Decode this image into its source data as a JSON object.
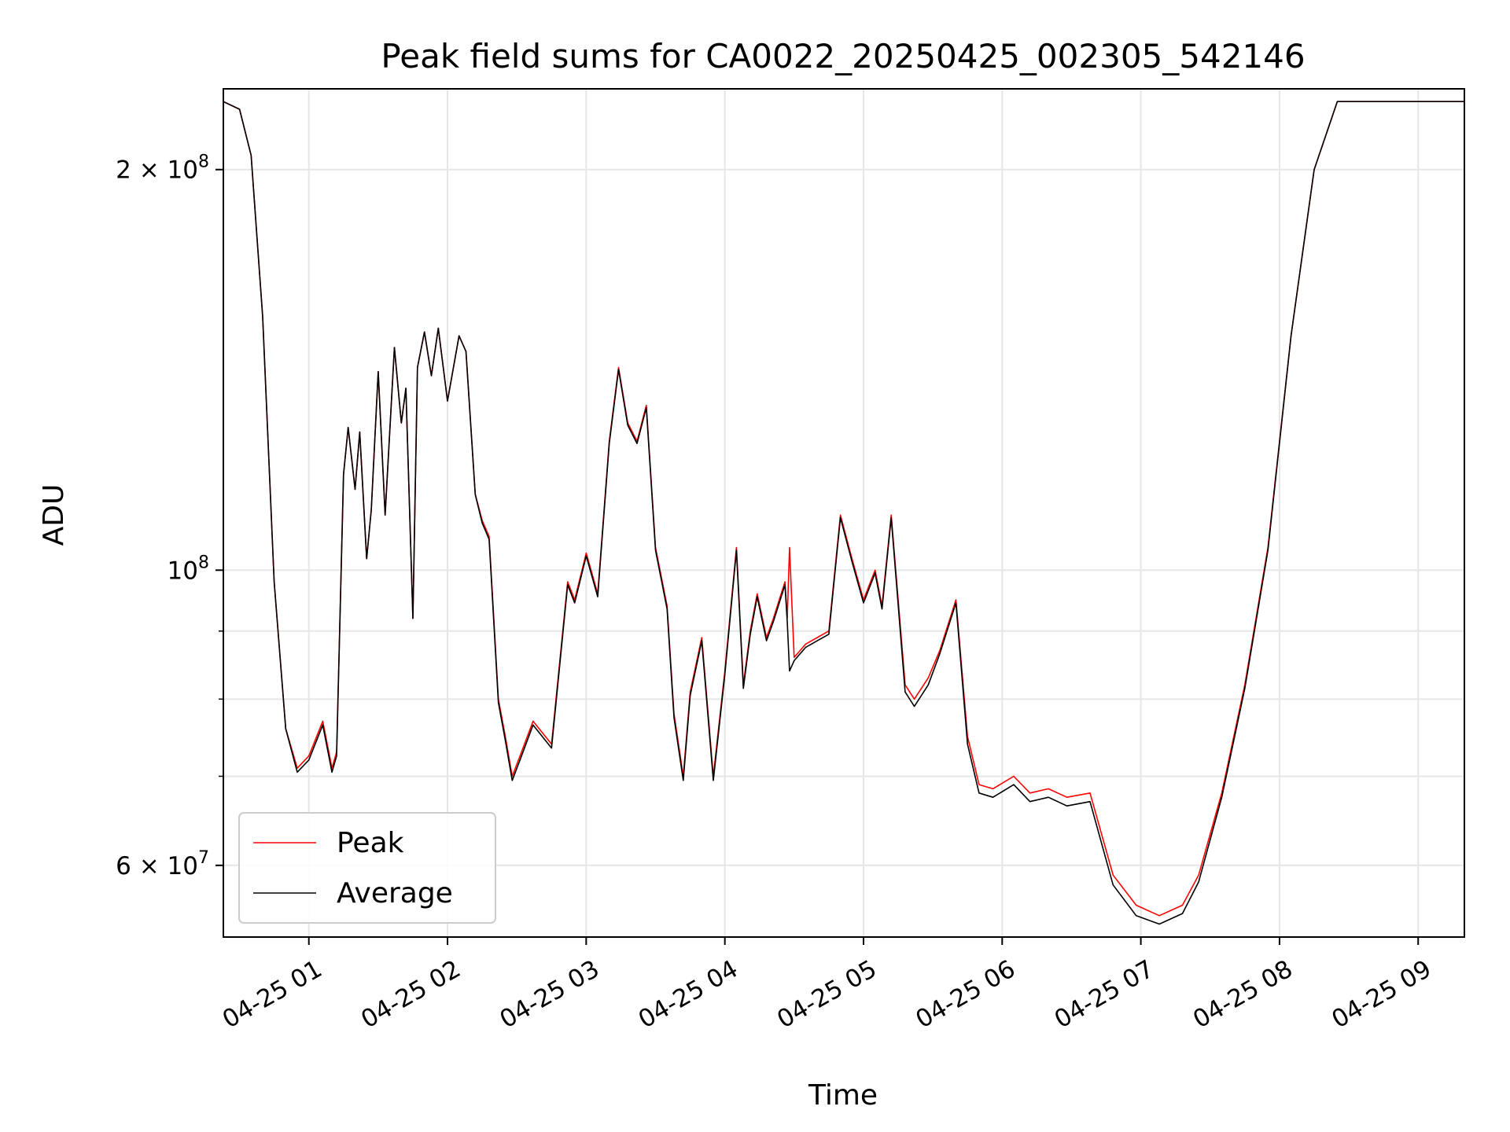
{
  "chart_data": {
    "type": "line",
    "title": "Peak field sums for CA0022_20250425_002305_542146",
    "xlabel": "Time",
    "ylabel": "ADU",
    "y_scale": "log",
    "xlim": [
      "2025-04-25 00:23:00",
      "2025-04-25 09:20:00"
    ],
    "ylim": [
      53000000,
      230000000
    ],
    "grid": true,
    "legend_position": "lower-left",
    "x_ticks": [
      {
        "t": "2025-04-25 01:00",
        "label": "04-25 01"
      },
      {
        "t": "2025-04-25 02:00",
        "label": "04-25 02"
      },
      {
        "t": "2025-04-25 03:00",
        "label": "04-25 03"
      },
      {
        "t": "2025-04-25 04:00",
        "label": "04-25 04"
      },
      {
        "t": "2025-04-25 05:00",
        "label": "04-25 05"
      },
      {
        "t": "2025-04-25 06:00",
        "label": "04-25 06"
      },
      {
        "t": "2025-04-25 07:00",
        "label": "04-25 07"
      },
      {
        "t": "2025-04-25 08:00",
        "label": "04-25 08"
      },
      {
        "t": "2025-04-25 09:00",
        "label": "04-25 09"
      }
    ],
    "y_major_ticks": [
      {
        "value": 60000000,
        "mantissa": "6",
        "exponent": "7"
      },
      {
        "value": 100000000,
        "mantissa": "",
        "exponent": "8"
      },
      {
        "value": 200000000,
        "mantissa": "2",
        "exponent": "8"
      }
    ],
    "y_minor_ticks": [
      70000000,
      80000000,
      90000000
    ],
    "series": [
      {
        "name": "Peak",
        "color": "#ff0000",
        "x": [
          "2025-04-25 00:23",
          "2025-04-25 00:30",
          "2025-04-25 00:35",
          "2025-04-25 00:40",
          "2025-04-25 00:45",
          "2025-04-25 00:50",
          "2025-04-25 00:55",
          "2025-04-25 01:00",
          "2025-04-25 01:06",
          "2025-04-25 01:10",
          "2025-04-25 01:12",
          "2025-04-25 01:15",
          "2025-04-25 01:17",
          "2025-04-25 01:20",
          "2025-04-25 01:22",
          "2025-04-25 01:25",
          "2025-04-25 01:27",
          "2025-04-25 01:30",
          "2025-04-25 01:33",
          "2025-04-25 01:37",
          "2025-04-25 01:40",
          "2025-04-25 01:42",
          "2025-04-25 01:45",
          "2025-04-25 01:47",
          "2025-04-25 01:50",
          "2025-04-25 01:53",
          "2025-04-25 01:56",
          "2025-04-25 02:00",
          "2025-04-25 02:05",
          "2025-04-25 02:08",
          "2025-04-25 02:12",
          "2025-04-25 02:15",
          "2025-04-25 02:18",
          "2025-04-25 02:22",
          "2025-04-25 02:25",
          "2025-04-25 02:28",
          "2025-04-25 02:32",
          "2025-04-25 02:37",
          "2025-04-25 02:45",
          "2025-04-25 02:52",
          "2025-04-25 02:55",
          "2025-04-25 03:00",
          "2025-04-25 03:05",
          "2025-04-25 03:10",
          "2025-04-25 03:14",
          "2025-04-25 03:18",
          "2025-04-25 03:22",
          "2025-04-25 03:26",
          "2025-04-25 03:30",
          "2025-04-25 03:35",
          "2025-04-25 03:38",
          "2025-04-25 03:42",
          "2025-04-25 03:45",
          "2025-04-25 03:50",
          "2025-04-25 03:55",
          "2025-04-25 04:00",
          "2025-04-25 04:05",
          "2025-04-25 04:08",
          "2025-04-25 04:11",
          "2025-04-25 04:14",
          "2025-04-25 04:18",
          "2025-04-25 04:21",
          "2025-04-25 04:26",
          "2025-04-25 04:27",
          "2025-04-25 04:28",
          "2025-04-25 04:30",
          "2025-04-25 04:35",
          "2025-04-25 04:40",
          "2025-04-25 04:45",
          "2025-04-25 04:50",
          "2025-04-25 04:55",
          "2025-04-25 05:00",
          "2025-04-25 05:05",
          "2025-04-25 05:08",
          "2025-04-25 05:12",
          "2025-04-25 05:18",
          "2025-04-25 05:22",
          "2025-04-25 05:28",
          "2025-04-25 05:33",
          "2025-04-25 05:40",
          "2025-04-25 05:45",
          "2025-04-25 05:50",
          "2025-04-25 05:56",
          "2025-04-25 06:05",
          "2025-04-25 06:12",
          "2025-04-25 06:20",
          "2025-04-25 06:28",
          "2025-04-25 06:38",
          "2025-04-25 06:48",
          "2025-04-25 06:58",
          "2025-04-25 07:08",
          "2025-04-25 07:18",
          "2025-04-25 07:25",
          "2025-04-25 07:35",
          "2025-04-25 07:45",
          "2025-04-25 07:55",
          "2025-04-25 08:05",
          "2025-04-25 08:15",
          "2025-04-25 08:25",
          "2025-04-25 08:35",
          "2025-04-25 08:43",
          "2025-04-25 08:50",
          "2025-04-25 08:55",
          "2025-04-25 09:00",
          "2025-04-25 09:02",
          "2025-04-25 09:20"
        ],
        "values": [
          225000000,
          222000000,
          205000000,
          155000000,
          98000000,
          76000000,
          71000000,
          72500000,
          77000000,
          71000000,
          73000000,
          118000000,
          128000000,
          115000000,
          127000000,
          102000000,
          111000000,
          141000000,
          110000000,
          147000000,
          129000000,
          137000000,
          92000000,
          142000000,
          151000000,
          140000000,
          152000000,
          134000000,
          150000000,
          146000000,
          114000000,
          109000000,
          106000000,
          80000000,
          75000000,
          70000000,
          73000000,
          77000000,
          74000000,
          98000000,
          95000000,
          103000000,
          96000000,
          125000000,
          142000000,
          129000000,
          125000000,
          133000000,
          104000000,
          94000000,
          78000000,
          70000000,
          81000000,
          89000000,
          70000000,
          84000000,
          104000000,
          82000000,
          90000000,
          96000000,
          89000000,
          92000000,
          98000000,
          92000000,
          104000000,
          86000000,
          88000000,
          89000000,
          90000000,
          110000000,
          102000000,
          95000000,
          100000000,
          94000000,
          110000000,
          82000000,
          80000000,
          83000000,
          87000000,
          95000000,
          75000000,
          69000000,
          68500000,
          70000000,
          68000000,
          68500000,
          67500000,
          68000000,
          59000000,
          56000000,
          55000000,
          56000000,
          59000000,
          68000000,
          82000000,
          104000000,
          150000000,
          200000000,
          225000000,
          225000000,
          225000000,
          225000000,
          225000000,
          225000000,
          225000000,
          225000000
        ]
      },
      {
        "name": "Average",
        "color": "#000000",
        "x": [
          "2025-04-25 00:23",
          "2025-04-25 00:30",
          "2025-04-25 00:35",
          "2025-04-25 00:40",
          "2025-04-25 00:45",
          "2025-04-25 00:50",
          "2025-04-25 00:55",
          "2025-04-25 01:00",
          "2025-04-25 01:06",
          "2025-04-25 01:10",
          "2025-04-25 01:12",
          "2025-04-25 01:15",
          "2025-04-25 01:17",
          "2025-04-25 01:20",
          "2025-04-25 01:22",
          "2025-04-25 01:25",
          "2025-04-25 01:27",
          "2025-04-25 01:30",
          "2025-04-25 01:33",
          "2025-04-25 01:37",
          "2025-04-25 01:40",
          "2025-04-25 01:42",
          "2025-04-25 01:45",
          "2025-04-25 01:47",
          "2025-04-25 01:50",
          "2025-04-25 01:53",
          "2025-04-25 01:56",
          "2025-04-25 02:00",
          "2025-04-25 02:05",
          "2025-04-25 02:08",
          "2025-04-25 02:12",
          "2025-04-25 02:15",
          "2025-04-25 02:18",
          "2025-04-25 02:22",
          "2025-04-25 02:25",
          "2025-04-25 02:28",
          "2025-04-25 02:32",
          "2025-04-25 02:37",
          "2025-04-25 02:45",
          "2025-04-25 02:52",
          "2025-04-25 02:55",
          "2025-04-25 03:00",
          "2025-04-25 03:05",
          "2025-04-25 03:10",
          "2025-04-25 03:14",
          "2025-04-25 03:18",
          "2025-04-25 03:22",
          "2025-04-25 03:26",
          "2025-04-25 03:30",
          "2025-04-25 03:35",
          "2025-04-25 03:38",
          "2025-04-25 03:42",
          "2025-04-25 03:45",
          "2025-04-25 03:50",
          "2025-04-25 03:55",
          "2025-04-25 04:00",
          "2025-04-25 04:05",
          "2025-04-25 04:08",
          "2025-04-25 04:11",
          "2025-04-25 04:14",
          "2025-04-25 04:18",
          "2025-04-25 04:21",
          "2025-04-25 04:26",
          "2025-04-25 04:27",
          "2025-04-25 04:28",
          "2025-04-25 04:30",
          "2025-04-25 04:35",
          "2025-04-25 04:40",
          "2025-04-25 04:45",
          "2025-04-25 04:50",
          "2025-04-25 04:55",
          "2025-04-25 05:00",
          "2025-04-25 05:05",
          "2025-04-25 05:08",
          "2025-04-25 05:12",
          "2025-04-25 05:18",
          "2025-04-25 05:22",
          "2025-04-25 05:28",
          "2025-04-25 05:33",
          "2025-04-25 05:40",
          "2025-04-25 05:45",
          "2025-04-25 05:50",
          "2025-04-25 05:56",
          "2025-04-25 06:05",
          "2025-04-25 06:12",
          "2025-04-25 06:20",
          "2025-04-25 06:28",
          "2025-04-25 06:38",
          "2025-04-25 06:48",
          "2025-04-25 06:58",
          "2025-04-25 07:08",
          "2025-04-25 07:18",
          "2025-04-25 07:25",
          "2025-04-25 07:35",
          "2025-04-25 07:45",
          "2025-04-25 07:55",
          "2025-04-25 08:05",
          "2025-04-25 08:15",
          "2025-04-25 08:25",
          "2025-04-25 08:35",
          "2025-04-25 08:43",
          "2025-04-25 08:50",
          "2025-04-25 08:55",
          "2025-04-25 09:00",
          "2025-04-25 09:02",
          "2025-04-25 09:20"
        ],
        "values": [
          225000000,
          222000000,
          205000000,
          155000000,
          98000000,
          76000000,
          70500000,
          72000000,
          76500000,
          70500000,
          72500000,
          118000000,
          128000000,
          115000000,
          127000000,
          102000000,
          111000000,
          141000000,
          110000000,
          147000000,
          129000000,
          137000000,
          92000000,
          142000000,
          151000000,
          140000000,
          152000000,
          134000000,
          150000000,
          146000000,
          114000000,
          108500000,
          105500000,
          79500000,
          74500000,
          69500000,
          72500000,
          76500000,
          73500000,
          97500000,
          94500000,
          102500000,
          95500000,
          124500000,
          141500000,
          128500000,
          124500000,
          132500000,
          103500000,
          93500000,
          77500000,
          69500000,
          80500000,
          88500000,
          69500000,
          83500000,
          103500000,
          81500000,
          89500000,
          95500000,
          88500000,
          91500000,
          97500000,
          91500000,
          84000000,
          85500000,
          87500000,
          88500000,
          89500000,
          109500000,
          101500000,
          94500000,
          99500000,
          93500000,
          109500000,
          81000000,
          79000000,
          82000000,
          86500000,
          94500000,
          74000000,
          68000000,
          67500000,
          69000000,
          67000000,
          67500000,
          66500000,
          67000000,
          58000000,
          55000000,
          54200000,
          55200000,
          58300000,
          67500000,
          81500000,
          103500000,
          150000000,
          200000000,
          225000000,
          225000000,
          225000000,
          225000000,
          225000000,
          225000000,
          225000000,
          225000000
        ]
      }
    ]
  }
}
